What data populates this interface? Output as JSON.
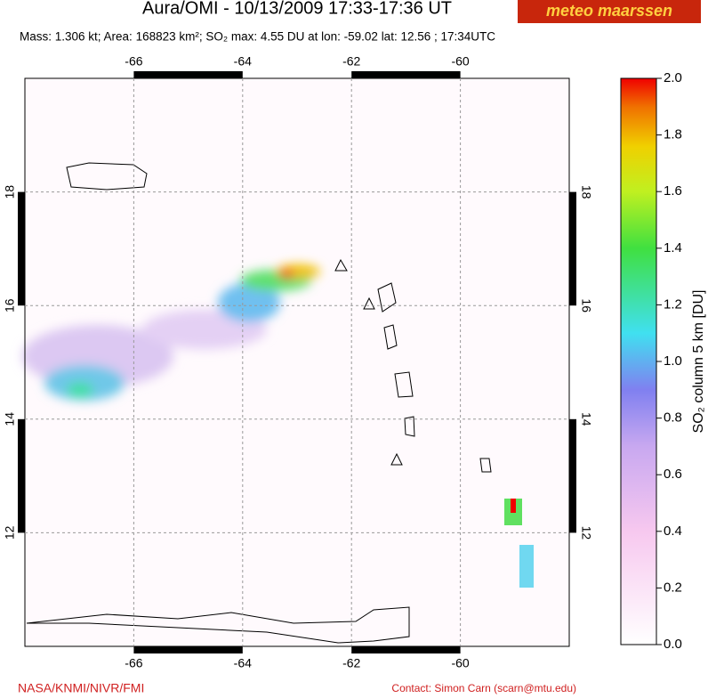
{
  "header": {
    "title": "Aura/OMI - 10/13/2009 17:33-17:36 UT",
    "logo": "meteo maarssen",
    "subtitle": "Mass: 1.306 kt; Area: 168823 km²; SO₂ max: 4.55 DU at lon: -59.02 lat: 12.56 ; 17:34UTC"
  },
  "map": {
    "xlim": [
      -68,
      -58
    ],
    "ylim": [
      10,
      20
    ],
    "xticks": [
      -66,
      -64,
      -62,
      -60
    ],
    "yticks": [
      12,
      14,
      16,
      18
    ]
  },
  "colorbar": {
    "label": "SO₂ column 5 km [DU]",
    "lim": [
      0,
      2
    ],
    "ticks": [
      {
        "value": 0,
        "label": "0.0"
      },
      {
        "value": 0.2,
        "label": "0.2"
      },
      {
        "value": 0.4,
        "label": "0.4"
      },
      {
        "value": 0.6,
        "label": "0.6"
      },
      {
        "value": 0.8,
        "label": "0.8"
      },
      {
        "value": 1,
        "label": "1.0"
      },
      {
        "value": 1.2,
        "label": "1.2"
      },
      {
        "value": 1.4,
        "label": "1.4"
      },
      {
        "value": 1.6,
        "label": "1.6"
      },
      {
        "value": 1.8,
        "label": "1.8"
      },
      {
        "value": 2,
        "label": "2.0"
      }
    ]
  },
  "footer": {
    "left": "NASA/KNMI/NIVR/FMI",
    "right": "Contact: Simon Carn (scarn@mtu.edu)"
  }
}
